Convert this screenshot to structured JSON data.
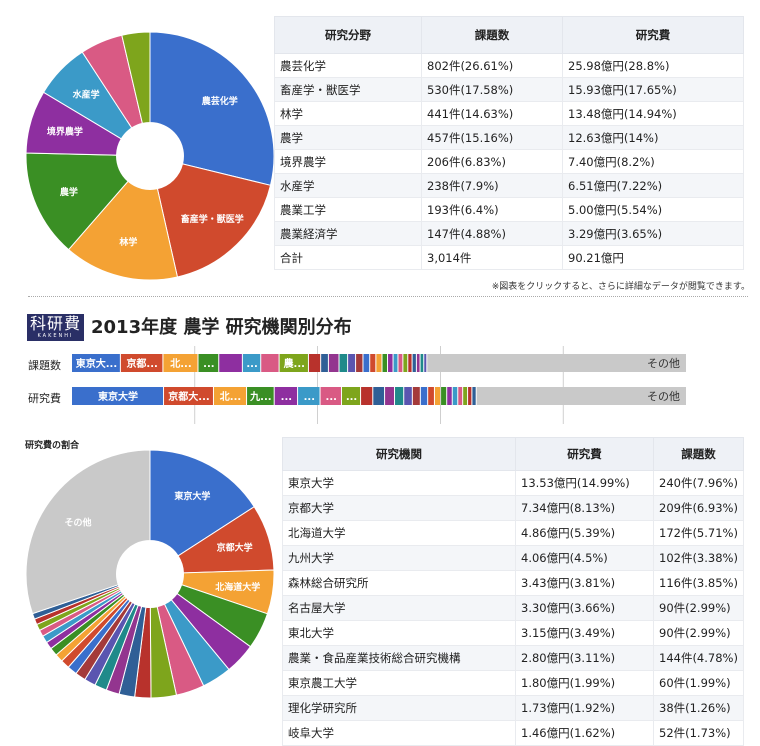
{
  "top_table": {
    "headers": [
      "研究分野",
      "課題数",
      "研究費"
    ],
    "rows": [
      [
        "農芸化学",
        "802件(26.61%)",
        "25.98億円(28.8%)"
      ],
      [
        "畜産学・獣医学",
        "530件(17.58%)",
        "15.93億円(17.65%)"
      ],
      [
        "林学",
        "441件(14.63%)",
        "13.48億円(14.94%)"
      ],
      [
        "農学",
        "457件(15.16%)",
        "12.63億円(14%)"
      ],
      [
        "境界農学",
        "206件(6.83%)",
        "7.40億円(8.2%)"
      ],
      [
        "水産学",
        "238件(7.9%)",
        "6.51億円(7.22%)"
      ],
      [
        "農業工学",
        "193件(6.4%)",
        "5.00億円(5.54%)"
      ],
      [
        "農業経済学",
        "147件(4.88%)",
        "3.29億円(3.65%)"
      ],
      [
        "合計",
        "3,014件",
        "90.21億円"
      ]
    ]
  },
  "note": "※図表をクリックすると、さらに詳細なデータが閲覧できます。",
  "logo": {
    "main": "科研費",
    "sub": "KAKENHI"
  },
  "section_title": "2013年度 農学 研究機関別分布",
  "bar_labels": {
    "count": "課題数",
    "cost": "研究費"
  },
  "pie2_title": "研究費の割合",
  "bottom_table": {
    "headers": [
      "研究機関",
      "研究費",
      "課題数"
    ],
    "rows": [
      [
        "東京大学",
        "13.53億円(14.99%)",
        "240件(7.96%)"
      ],
      [
        "京都大学",
        "7.34億円(8.13%)",
        "209件(6.93%)"
      ],
      [
        "北海道大学",
        "4.86億円(5.39%)",
        "172件(5.71%)"
      ],
      [
        "九州大学",
        "4.06億円(4.5%)",
        "102件(3.38%)"
      ],
      [
        "森林総合研究所",
        "3.43億円(3.81%)",
        "116件(3.85%)"
      ],
      [
        "名古屋大学",
        "3.30億円(3.66%)",
        "90件(2.99%)"
      ],
      [
        "東北大学",
        "3.15億円(3.49%)",
        "90件(2.99%)"
      ],
      [
        "農業・食品産業技術総合研究機構",
        "2.80億円(3.11%)",
        "144件(4.78%)"
      ],
      [
        "東京農工大学",
        "1.80億円(1.99%)",
        "60件(1.99%)"
      ],
      [
        "理化学研究所",
        "1.73億円(1.92%)",
        "38件(1.26%)"
      ],
      [
        "岐阜大学",
        "1.46億円(1.62%)",
        "52件(1.73%)"
      ]
    ]
  },
  "colors": [
    "#3a6fcc",
    "#d04a2d",
    "#f4a234",
    "#3a8f24",
    "#8e2fa0",
    "#3b9ac8",
    "#d95a84",
    "#7ea51c",
    "#b8322c",
    "#2f5f96",
    "#93358f",
    "#1f8a8a",
    "#5a55b0",
    "#a43a3a",
    "#c9c9c9"
  ],
  "chart_data": [
    {
      "type": "pie",
      "title": "",
      "labels": [
        "農芸化学",
        "畜産学・獣医学",
        "林学",
        "農学",
        "境界農学",
        "水産学",
        "農業工学",
        "農業経済学"
      ],
      "values": [
        28.8,
        17.65,
        14.94,
        14.0,
        8.2,
        7.22,
        5.54,
        3.65
      ],
      "slice_labels": [
        "農芸化学",
        "畜産学・獣医学",
        "林学",
        "農学",
        "境界農学",
        "水産学",
        "",
        ""
      ]
    },
    {
      "type": "bar",
      "stacked": true,
      "orientation": "horizontal",
      "categories": [
        "課題数",
        "研究費"
      ],
      "series_count_pct": [
        7.96,
        6.93,
        5.71,
        3.38,
        3.85,
        2.99,
        2.99,
        4.78,
        1.99,
        1.26,
        1.73,
        1.4,
        1.3,
        1.2,
        1.1,
        1.0,
        1.0,
        0.9,
        0.9,
        0.8,
        0.8,
        0.8,
        0.7,
        0.7,
        0.6,
        0.6,
        0.5
      ],
      "series_cost_pct": [
        14.99,
        8.13,
        5.39,
        4.5,
        3.81,
        3.66,
        3.49,
        3.11,
        1.99,
        1.92,
        1.62,
        1.5,
        1.4,
        1.3,
        1.2,
        1.1,
        1.0,
        1.0,
        0.9,
        0.9,
        0.8,
        0.8,
        0.7,
        0.7
      ],
      "segment_labels_count": [
        "東京大...",
        "京都...",
        "北...",
        "...",
        "",
        "...",
        "",
        "農...",
        "",
        "",
        "",
        "",
        "",
        "",
        "",
        "",
        "",
        "",
        "",
        "",
        "",
        "",
        "",
        "",
        "",
        "",
        ""
      ],
      "segment_labels_cost": [
        "東京大学",
        "京都大...",
        "北...",
        "九...",
        "...",
        "...",
        "...",
        "...",
        "",
        "",
        "",
        "",
        "",
        "",
        "",
        "",
        "",
        "",
        "",
        "",
        "",
        "",
        "",
        ""
      ],
      "other_label": "その他"
    },
    {
      "type": "pie",
      "title": "研究費の割合",
      "labels": [
        "東京大学",
        "京都大学",
        "北海道大学",
        "九州大学",
        "森林総合研究所",
        "名古屋大学",
        "東北大学",
        "農業・食品産業技術総合研究機構",
        "東京農工大学",
        "理化学研究所",
        "岐阜大学",
        "",
        "",
        "",
        "",
        "",
        "",
        "",
        "",
        "",
        "",
        "",
        "",
        "",
        "その他"
      ],
      "values": [
        14.99,
        8.13,
        5.39,
        4.5,
        3.81,
        3.66,
        3.49,
        3.11,
        1.99,
        1.92,
        1.62,
        1.5,
        1.4,
        1.3,
        1.2,
        1.1,
        1.0,
        1.0,
        0.9,
        0.9,
        0.8,
        0.8,
        0.7,
        0.7,
        28.49
      ],
      "slice_labels": [
        "東京大学",
        "京都大学",
        "北海道大学",
        "",
        "",
        "",
        "",
        "",
        "",
        "",
        "",
        "",
        "",
        "",
        "",
        "",
        "",
        "",
        "",
        "",
        "",
        "",
        "",
        "",
        "その他"
      ]
    }
  ]
}
